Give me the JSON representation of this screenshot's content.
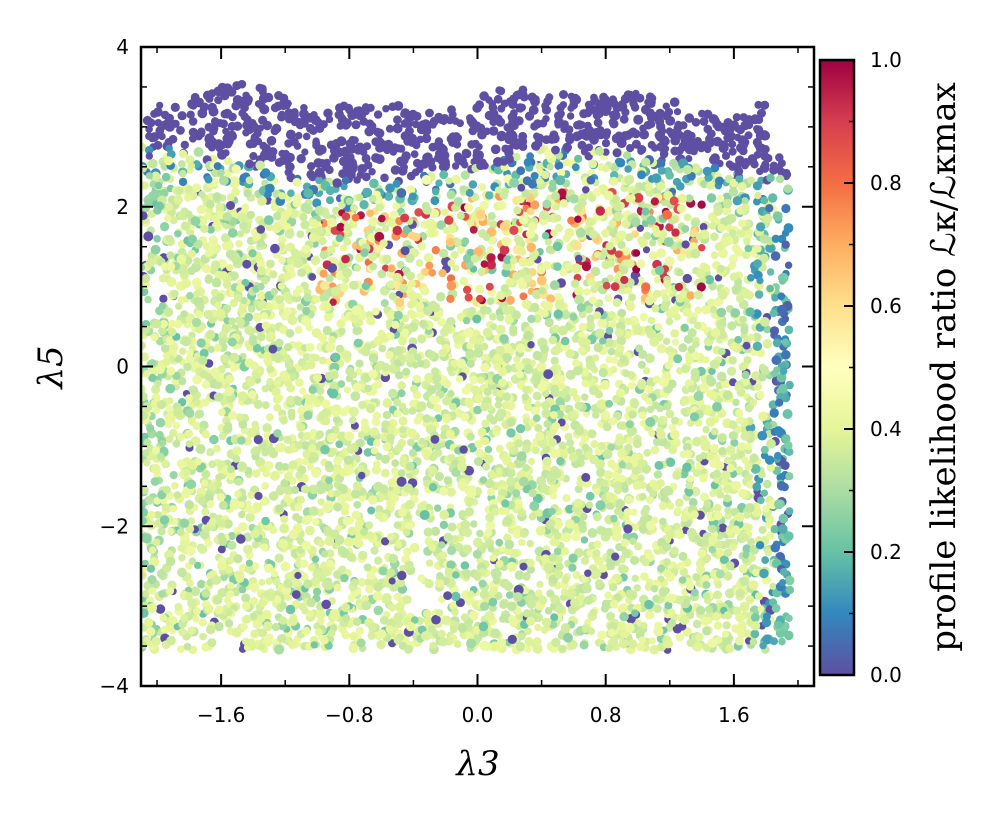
{
  "chart_data": {
    "type": "scatter",
    "title": "",
    "xlabel": "λ3",
    "ylabel": "λ5",
    "xlim": [
      -2.1,
      2.1
    ],
    "ylim": [
      -4,
      4
    ],
    "xticks": [
      -1.6,
      -0.8,
      0.0,
      0.8,
      1.6
    ],
    "xtick_labels": [
      "−1.6",
      "−0.8",
      "0.0",
      "0.8",
      "1.6"
    ],
    "yticks": [
      -4,
      -2,
      0,
      2,
      4
    ],
    "ytick_labels": [
      "−4",
      "−2",
      "0",
      "2",
      "4"
    ],
    "grid": false,
    "colorbar": {
      "label": "profile likelihood ratio ℒκ/ℒκmax",
      "range": [
        0.0,
        1.0
      ],
      "ticks": [
        0.0,
        0.2,
        0.4,
        0.6,
        0.8,
        1.0
      ],
      "tick_labels": [
        "0.0",
        "0.2",
        "0.4",
        "0.6",
        "0.8",
        "1.0"
      ],
      "colormap": "Spectral_r"
    },
    "description_regions": [
      {
        "region": "lambda5 between 2.6 and 3.5, lambda3 from -2.1 to 1.9",
        "value": 0.0
      },
      {
        "region": "lambda5 between 1.0 and 2.3, lambda3 from -1.0 to 1.3",
        "value_range": [
          0.6,
          1.0
        ]
      },
      {
        "region": "bulk lambda5 between -3.5 and 1.8",
        "value_range": [
          0.3,
          0.45
        ]
      },
      {
        "region": "right edge lambda3 above 1.9",
        "value_range": [
          0.0,
          0.2
        ]
      }
    ]
  }
}
